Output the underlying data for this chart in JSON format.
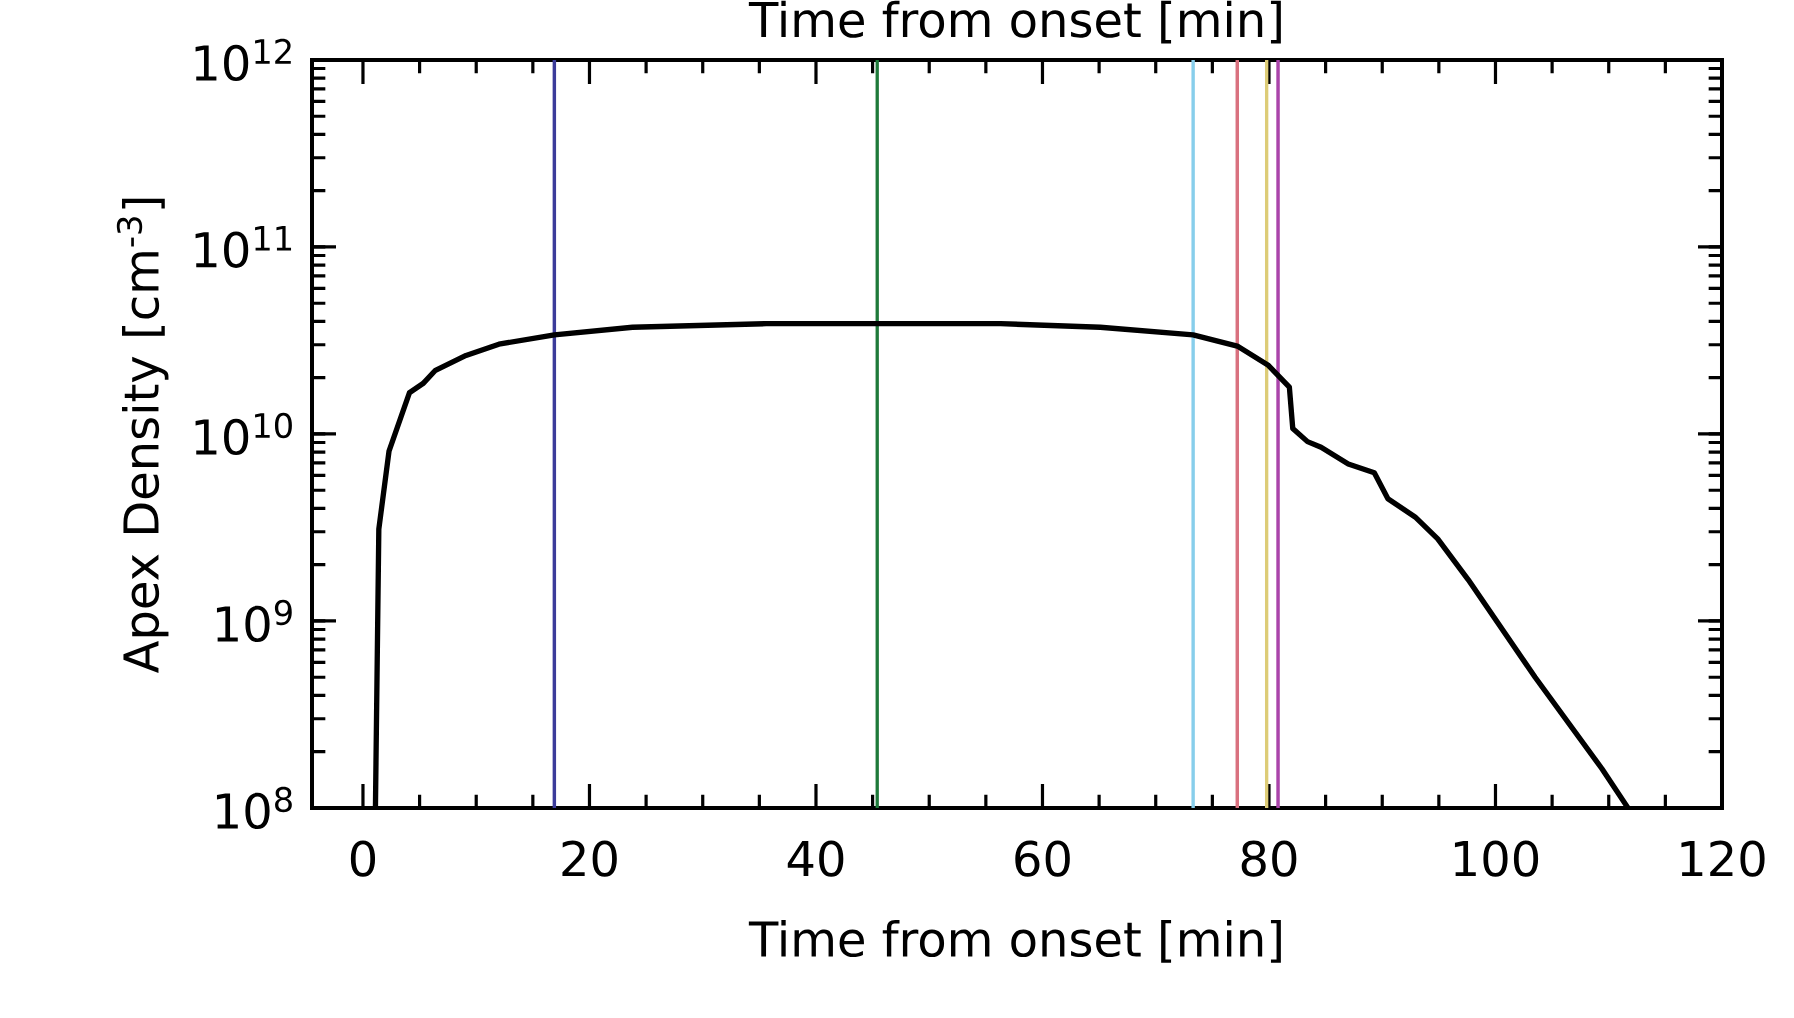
{
  "chart_data": {
    "type": "line",
    "xlabel": "Time from onset [min]",
    "x2label": "Time from onset [min]",
    "ylabel": "Apex Density [cm$^{-3}$]",
    "log": "y",
    "xlim": [
      -4.5,
      120
    ],
    "ylim": [
      100000000.0,
      1000000000000.0
    ],
    "xticks": [
      0,
      20,
      40,
      60,
      80,
      100,
      120
    ],
    "yticks": [
      {
        "value": 100000000.0,
        "label": "10$^{8}$"
      },
      {
        "value": 1000000000.0,
        "label": "10$^{9}$"
      },
      {
        "value": 10000000000.0,
        "label": "10$^{10}$"
      },
      {
        "value": 100000000000.0,
        "label": "10$^{11}$"
      },
      {
        "value": 1000000000000.0,
        "label": "10$^{12}$"
      }
    ],
    "series": [
      {
        "color": "#000000",
        "x": [
          1.1,
          1.4,
          2.3,
          4.1,
          5.3,
          6.4,
          9.1,
          12.0,
          16.9,
          23.8,
          35.6,
          45.3,
          56.3,
          65.1,
          73.3,
          77.2,
          79.9,
          81.8,
          82.1,
          83.4,
          84.6,
          87.0,
          89.3,
          90.5,
          92.9,
          94.9,
          97.6,
          103.5,
          109.4,
          111.7
        ],
        "values": [
          100000000.0,
          3100000000.0,
          8100000000.0,
          16600000000.0,
          18600000000.0,
          21900000000.0,
          26300000000.0,
          30200000000.0,
          33900000000.0,
          37200000000.0,
          38900000000.0,
          38900000000.0,
          38900000000.0,
          37200000000.0,
          33900000000.0,
          29500000000.0,
          23400000000.0,
          17800000000.0,
          10700000000.0,
          9100000000.0,
          8500000000.0,
          6900000000.0,
          6200000000.0,
          4500000000.0,
          3600000000.0,
          2750000000.0,
          1660000000.0,
          500000000.0,
          162000000.0,
          100000000.0
        ]
      }
    ],
    "ref_lines": [
      {
        "axis": "x",
        "value": 16.9,
        "color": "#3b3b9a"
      },
      {
        "axis": "x",
        "value": 45.4,
        "color": "#1e7a3a"
      },
      {
        "axis": "x",
        "value": 73.3,
        "color": "#87ceeb"
      },
      {
        "axis": "x",
        "value": 77.2,
        "color": "#d9717f"
      },
      {
        "axis": "x",
        "value": 79.8,
        "color": "#ddcc77"
      },
      {
        "axis": "x",
        "value": 80.8,
        "color": "#aa44aa"
      }
    ],
    "grid": false
  }
}
